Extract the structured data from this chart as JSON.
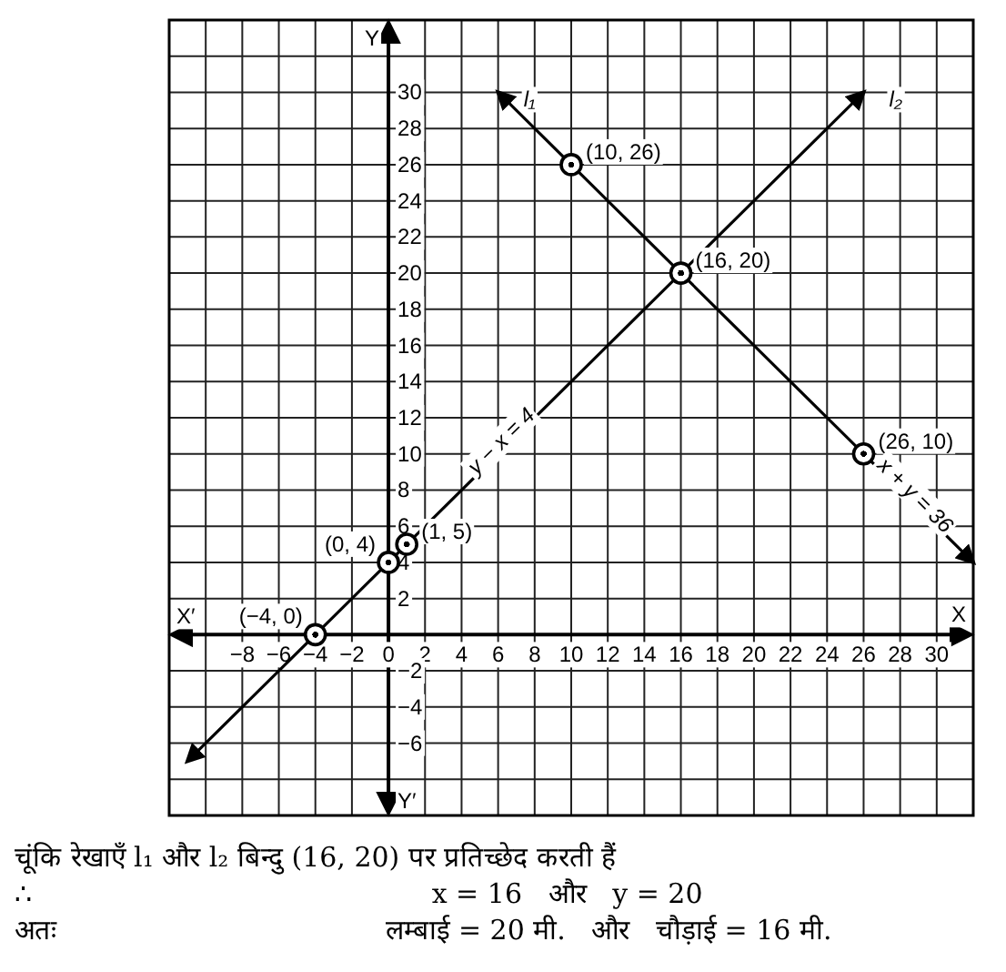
{
  "chart_data": {
    "type": "line",
    "xlim": [
      -12,
      32
    ],
    "ylim": [
      -10,
      34
    ],
    "grid": true,
    "line_style": "solid",
    "xlabel": "X",
    "ylabel": "Y",
    "xticks": [
      {
        "value": -12,
        "label": null
      },
      {
        "value": -10,
        "label": null
      },
      -8,
      -6,
      -4,
      -2,
      0,
      2,
      4,
      6,
      8,
      10,
      12,
      14,
      16,
      18,
      20,
      22,
      24,
      26,
      28,
      30,
      {
        "value": 32,
        "label": null
      }
    ],
    "yticks": [
      {
        "value": -10,
        "label": null
      },
      {
        "value": -8,
        "label": null
      },
      -6,
      -4,
      -2,
      {
        "value": 0,
        "label": null
      },
      2,
      4,
      6,
      8,
      10,
      12,
      14,
      16,
      18,
      20,
      22,
      24,
      26,
      28,
      30,
      {
        "value": 32,
        "label": null
      },
      {
        "value": 34,
        "label": null
      }
    ],
    "series": [
      {
        "name": "l₁",
        "type": "line",
        "color": "#000000",
        "x": [
          6,
          10,
          16,
          26,
          32
        ],
        "values": [
          30,
          26,
          20,
          10,
          4
        ]
      },
      {
        "name": "l₂",
        "type": "line",
        "color": "#000000",
        "x": [
          -11,
          -4,
          0,
          1,
          16,
          26
        ],
        "values": [
          -7,
          0,
          4,
          5,
          20,
          30
        ]
      },
      {
        "type": "scatter",
        "marker": "circle",
        "color": "#000000",
        "x": [
          -4,
          0,
          1,
          10,
          16,
          26
        ],
        "values": [
          0,
          4,
          5,
          26,
          20,
          10
        ]
      }
    ],
    "annotations": [
      {
        "text": "(−4, 0)",
        "x": -4,
        "y": 0
      },
      {
        "text": "(0, 4)",
        "x": 0,
        "y": 4
      },
      {
        "text": "(1, 5)",
        "x": 1,
        "y": 5
      },
      {
        "text": "(10, 26)",
        "x": 10,
        "y": 26
      },
      {
        "text": "(16, 20)",
        "x": 16,
        "y": 20
      },
      {
        "text": "(26, 10)",
        "x": 26,
        "y": 10
      },
      {
        "text": "y − x = 4",
        "x": 7,
        "y": 11
      },
      {
        "text": "x + y = 36",
        "x": 28,
        "y": 8
      },
      "X′",
      "Y′",
      "चूंकि रेखाएँ l₁ और l₂ बिन्दु (16, 20) पर प्रतिच्छेद करती हैं",
      "∴                                              x = 16   और   y = 20",
      "अतः                                      लम्बाई = 20 मी.   और   चौड़ाई = 16 मी."
    ]
  }
}
